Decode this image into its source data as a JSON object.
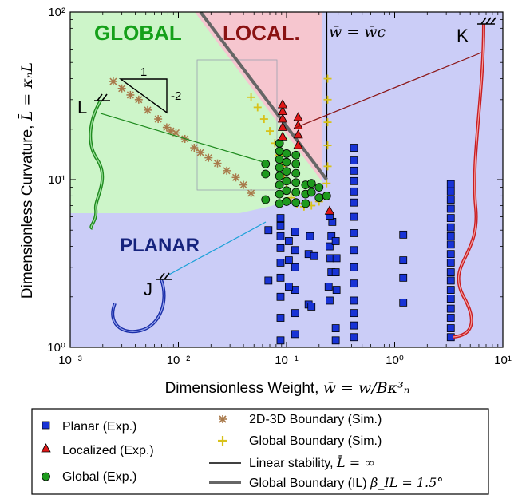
{
  "chart_data": {
    "type": "scatter",
    "x_scale": "log",
    "y_scale": "log",
    "xlim": [
      0.001,
      10
    ],
    "ylim": [
      1,
      100
    ],
    "xlabel": "Dimensionless Weight, w̄ = w/Bκ³ₙ",
    "ylabel": "Dimensionless Curvature, L̄ = κₙL",
    "x_tick_labels": [
      "10⁻³",
      "10⁻²",
      "10⁻¹",
      "10⁰",
      "10¹"
    ],
    "y_tick_labels": [
      "10⁰",
      "10¹",
      "10²"
    ],
    "x_ticks": [
      0.001,
      0.01,
      0.1,
      1,
      10
    ],
    "y_ticks": [
      1,
      10,
      100
    ],
    "regions": [
      {
        "label": "GLOBAL",
        "color": "#15a01a",
        "fill": "#cdf5c9"
      },
      {
        "label": "LOCAL.",
        "color": "#8a1212",
        "fill": "#f6c6cf"
      },
      {
        "label": "PLANAR",
        "color": "#16237d",
        "fill": "#cbcdf7"
      }
    ],
    "critical_weight_label": "w̄ = w̄c",
    "critical_weight": 0.235,
    "slope_triangle": {
      "run_label": "1",
      "rise_label": "-2"
    },
    "series": [
      {
        "name": "Planar (Exp.)",
        "marker": "square",
        "color": "#1833d6",
        "points": [
          [
            0.088,
            1.1
          ],
          [
            0.088,
            1.5
          ],
          [
            0.088,
            2.0
          ],
          [
            0.088,
            2.6
          ],
          [
            0.088,
            3.2
          ],
          [
            0.088,
            3.9
          ],
          [
            0.088,
            4.6
          ],
          [
            0.088,
            5.3
          ],
          [
            0.088,
            5.9
          ],
          [
            0.12,
            1.2
          ],
          [
            0.12,
            1.6
          ],
          [
            0.12,
            2.2
          ],
          [
            0.12,
            3.0
          ],
          [
            0.12,
            3.8
          ],
          [
            0.12,
            4.9
          ],
          [
            0.105,
            2.3
          ],
          [
            0.105,
            3.3
          ],
          [
            0.105,
            4.3
          ],
          [
            0.068,
            2.5
          ],
          [
            0.068,
            5.0
          ],
          [
            0.16,
            1.8
          ],
          [
            0.17,
            1.75
          ],
          [
            0.16,
            3.6
          ],
          [
            0.18,
            3.5
          ],
          [
            0.165,
            4.6
          ],
          [
            0.25,
            1.9
          ],
          [
            0.245,
            2.3
          ],
          [
            0.26,
            2.8
          ],
          [
            0.255,
            3.4
          ],
          [
            0.25,
            4.0
          ],
          [
            0.26,
            4.6
          ],
          [
            0.265,
            5.6
          ],
          [
            0.25,
            6.1
          ],
          [
            0.285,
            1.1
          ],
          [
            0.285,
            1.3
          ],
          [
            0.29,
            2.2
          ],
          [
            0.285,
            2.8
          ],
          [
            0.29,
            3.4
          ],
          [
            0.285,
            4.3
          ],
          [
            0.42,
            1.15
          ],
          [
            0.42,
            1.35
          ],
          [
            0.42,
            1.6
          ],
          [
            0.42,
            1.9
          ],
          [
            0.42,
            2.4
          ],
          [
            0.42,
            3.0
          ],
          [
            0.42,
            3.8
          ],
          [
            0.42,
            4.8
          ],
          [
            0.42,
            6.0
          ],
          [
            0.42,
            7.3
          ],
          [
            0.42,
            8.5
          ],
          [
            0.42,
            9.8
          ],
          [
            0.42,
            11.3
          ],
          [
            0.42,
            13.0
          ],
          [
            0.42,
            15.5
          ],
          [
            1.2,
            1.85
          ],
          [
            1.2,
            2.6
          ],
          [
            1.2,
            3.3
          ],
          [
            1.2,
            4.7
          ],
          [
            3.3,
            1.15
          ],
          [
            3.3,
            1.3
          ],
          [
            3.3,
            1.5
          ],
          [
            3.3,
            1.7
          ],
          [
            3.3,
            1.95
          ],
          [
            3.3,
            2.2
          ],
          [
            3.3,
            2.5
          ],
          [
            3.3,
            2.8
          ],
          [
            3.3,
            3.2
          ],
          [
            3.3,
            3.6
          ],
          [
            3.3,
            4.1
          ],
          [
            3.3,
            4.6
          ],
          [
            3.3,
            5.2
          ],
          [
            3.3,
            5.9
          ],
          [
            3.3,
            6.7
          ],
          [
            3.3,
            7.6
          ],
          [
            3.3,
            8.5
          ],
          [
            3.3,
            9.4
          ]
        ]
      },
      {
        "name": "Localized (Exp.)",
        "marker": "triangle",
        "color": "#e01818",
        "points": [
          [
            0.092,
            18
          ],
          [
            0.092,
            20.5
          ],
          [
            0.092,
            23
          ],
          [
            0.092,
            25.5
          ],
          [
            0.092,
            28
          ],
          [
            0.128,
            16
          ],
          [
            0.128,
            18.5
          ],
          [
            0.128,
            21
          ],
          [
            0.128,
            23.5
          ],
          [
            0.25,
            6.5
          ]
        ]
      },
      {
        "name": "Global (Exp.)",
        "marker": "circle",
        "color": "#1e9a1e",
        "points": [
          [
            0.064,
            7.6
          ],
          [
            0.064,
            10.8
          ],
          [
            0.064,
            12.4
          ],
          [
            0.086,
            7.2
          ],
          [
            0.086,
            8.2
          ],
          [
            0.086,
            9.3
          ],
          [
            0.086,
            10.5
          ],
          [
            0.086,
            11.8
          ],
          [
            0.086,
            13.2
          ],
          [
            0.086,
            14.8
          ],
          [
            0.086,
            16.5
          ],
          [
            0.1,
            7.4
          ],
          [
            0.1,
            8.6
          ],
          [
            0.1,
            9.8
          ],
          [
            0.1,
            11.2
          ],
          [
            0.1,
            12.7
          ],
          [
            0.1,
            14.3
          ],
          [
            0.122,
            7.3
          ],
          [
            0.122,
            8.4
          ],
          [
            0.122,
            9.6
          ],
          [
            0.122,
            10.9
          ],
          [
            0.122,
            12.4
          ],
          [
            0.122,
            14.0
          ],
          [
            0.15,
            7.2
          ],
          [
            0.15,
            8.2
          ],
          [
            0.15,
            9.3
          ],
          [
            0.17,
            8.4
          ],
          [
            0.17,
            9.5
          ],
          [
            0.2,
            7.8
          ],
          [
            0.2,
            9.0
          ],
          [
            0.235,
            8.0
          ]
        ]
      },
      {
        "name": "2D-3D Boundary (Sim.)",
        "marker": "asterisk",
        "color": "#a8794a",
        "points": [
          [
            0.0025,
            38.5
          ],
          [
            0.003,
            35
          ],
          [
            0.0036,
            32
          ],
          [
            0.0043,
            30
          ],
          [
            0.0052,
            26
          ],
          [
            0.0065,
            23
          ],
          [
            0.0078,
            20.5
          ],
          [
            0.0085,
            19.5
          ],
          [
            0.0095,
            19
          ],
          [
            0.0115,
            17.5
          ],
          [
            0.014,
            15.5
          ],
          [
            0.016,
            14.5
          ],
          [
            0.019,
            13.5
          ],
          [
            0.023,
            12.5
          ],
          [
            0.028,
            11.3
          ],
          [
            0.034,
            10.3
          ],
          [
            0.04,
            9.3
          ],
          [
            0.047,
            8.3
          ]
        ]
      },
      {
        "name": "Global Boundary (Sim.)",
        "marker": "plus",
        "color": "#d8c21a",
        "points": [
          [
            0.047,
            31
          ],
          [
            0.054,
            27
          ],
          [
            0.062,
            23
          ],
          [
            0.07,
            19.5
          ],
          [
            0.078,
            16.5
          ],
          [
            0.085,
            14
          ],
          [
            0.09,
            12
          ],
          [
            0.095,
            10.2
          ],
          [
            0.1,
            8.8
          ],
          [
            0.11,
            7.8
          ],
          [
            0.125,
            7.2
          ],
          [
            0.145,
            6.9
          ],
          [
            0.17,
            7.0
          ],
          [
            0.2,
            7.4
          ],
          [
            0.225,
            8.0
          ],
          [
            0.235,
            9.5
          ],
          [
            0.24,
            12
          ],
          [
            0.24,
            16
          ],
          [
            0.24,
            22
          ],
          [
            0.24,
            30
          ],
          [
            0.24,
            40
          ]
        ]
      }
    ],
    "lines": [
      {
        "name": "Linear stability, L̄ = ∞",
        "color": "#000000",
        "x": [
          0.235,
          0.235
        ],
        "y": [
          10,
          100
        ]
      },
      {
        "name": "Global Boundary (IL) β_IL = 1.5°",
        "color": "#666666",
        "x": [
          0.016,
          0.235
        ],
        "y": [
          100,
          10
        ]
      }
    ]
  },
  "figure": {
    "region_labels": {
      "global": "GLOBAL",
      "local": "LOCAL.",
      "planar": "PLANAR"
    },
    "crit_label": "w̄ = w̄c",
    "tri_run": "1",
    "tri_rise": "-2",
    "inset_labels": {
      "K": "K",
      "L": "L",
      "J": "J"
    },
    "xlabel_text": "Dimensionless Weight,",
    "xlabel_math": "w̄ = w/Bκ³ₙ",
    "ylabel_text": "Dimensionless Curvature,",
    "ylabel_math": "L̄ = κₙL"
  },
  "legend": {
    "planar": "Planar (Exp.)",
    "localized": "Localized (Exp.)",
    "global": "Global (Exp.)",
    "boundary_2d3d": "2D-3D Boundary (Sim.)",
    "global_boundary_sim": "Global Boundary (Sim.)",
    "linear_stability": "Linear stability,",
    "linear_stability_math": "L̄ = ∞",
    "global_boundary_il": "Global Boundary (IL)",
    "global_boundary_il_math": "β_IL = 1.5°"
  }
}
